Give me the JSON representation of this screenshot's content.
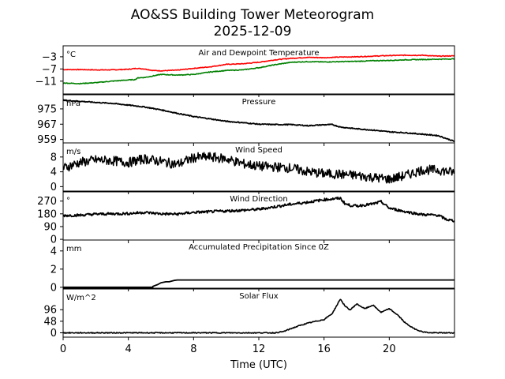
{
  "chart_data": {
    "type": "line",
    "title": "AO&SS Building Tower Meteorogram",
    "subtitle": "2025-12-09",
    "xlabel": "Time (UTC)",
    "xlim": [
      0,
      24
    ],
    "xticks": [
      0,
      4,
      8,
      12,
      16,
      20
    ],
    "panels": [
      {
        "title": "Air and Dewpoint Temperature",
        "unit": "°C",
        "ylim": [
          -15.2,
          0.6
        ],
        "yticks": [
          -3,
          -7,
          -11
        ],
        "yticklabels": [
          "−3",
          "−7",
          "−11"
        ],
        "series": [
          {
            "name": "Air Temperature",
            "color": "#ff0000",
            "x": [
              0,
              1,
              2,
              3,
              4,
              4.5,
              5,
              5.5,
              6,
              7,
              8,
              9,
              10,
              11,
              12,
              13,
              14,
              15,
              16,
              17,
              18,
              19,
              20,
              21,
              22,
              23,
              24
            ],
            "y": [
              -7.2,
              -7.2,
              -7.3,
              -7.3,
              -7.1,
              -6.8,
              -7.0,
              -7.5,
              -7.6,
              -7.4,
              -6.8,
              -6.3,
              -5.5,
              -5.3,
              -4.8,
              -4.0,
              -3.5,
              -3.2,
              -3.3,
              -3.1,
              -3.0,
              -2.8,
              -2.6,
              -2.5,
              -2.5,
              -2.8,
              -2.7
            ]
          },
          {
            "name": "Dewpoint Temperature",
            "color": "#008000",
            "x": [
              0,
              1,
              2,
              3,
              4,
              4.4,
              4.6,
              5,
              5.5,
              6,
              7,
              8,
              9,
              10,
              11,
              12,
              13,
              14,
              15,
              16,
              17,
              18,
              19,
              20,
              21,
              22,
              23,
              24
            ],
            "y": [
              -11.6,
              -11.8,
              -11.5,
              -11.0,
              -10.6,
              -10.5,
              -9.9,
              -9.8,
              -9.3,
              -8.8,
              -9.0,
              -8.8,
              -8.0,
              -7.5,
              -7.3,
              -6.6,
              -5.6,
              -4.8,
              -4.6,
              -4.7,
              -4.6,
              -4.5,
              -4.3,
              -4.2,
              -4.0,
              -3.9,
              -3.8,
              -3.7
            ]
          }
        ]
      },
      {
        "title": "Pressure",
        "unit": "hPa",
        "ylim": [
          957.2,
          982.4
        ],
        "yticks": [
          975,
          967,
          959
        ],
        "yticklabels": [
          "975",
          "967",
          "959"
        ],
        "series": [
          {
            "name": "Pressure",
            "color": "#000000",
            "x": [
              0,
              1,
              2,
              3,
              4,
              5,
              6,
              7,
              8,
              9,
              10,
              11,
              12,
              13,
              14,
              15,
              16,
              16.5,
              17,
              18,
              19,
              20,
              21,
              22,
              23,
              24
            ],
            "y": [
              979.5,
              979.0,
              978.4,
              977.9,
              977.0,
              976.0,
              974.5,
              972.7,
              971.0,
              969.8,
              968.5,
              967.8,
              967.0,
              966.8,
              966.8,
              966.2,
              966.7,
              966.8,
              965.5,
              964.6,
              963.9,
              963.0,
              962.5,
              961.8,
              961.0,
              958.0
            ]
          }
        ]
      },
      {
        "title": "Wind Speed",
        "unit": "m/s",
        "ylim": [
          -1.2,
          11.8
        ],
        "yticks": [
          8,
          4,
          0
        ],
        "yticklabels": [
          "8",
          "4",
          "0"
        ],
        "series": [
          {
            "name": "Wind Speed",
            "color": "#000000",
            "x": [
              0,
              1,
              2,
              3,
              4,
              5,
              6,
              7,
              8,
              9,
              10,
              11,
              12,
              13,
              14,
              15,
              16,
              17,
              18,
              19,
              20,
              21,
              22,
              23,
              24
            ],
            "y": [
              5.0,
              6.5,
              7.2,
              7.0,
              6.5,
              7.5,
              6.8,
              6.0,
              7.8,
              8.0,
              7.5,
              6.2,
              5.5,
              5.3,
              5.0,
              4.0,
              3.5,
              3.3,
              3.0,
              2.5,
              2.0,
              3.0,
              4.5,
              4.5,
              3.8
            ]
          }
        ]
      },
      {
        "title": "Wind Direction",
        "unit": "°",
        "ylim": [
          -5,
          335
        ],
        "yticks": [
          270,
          180,
          90,
          0
        ],
        "yticklabels": [
          "270",
          "180",
          "90",
          "0"
        ],
        "series": [
          {
            "name": "Wind Direction",
            "color": "#000000",
            "x": [
              0,
              1,
              2,
              3,
              4,
              5,
              6,
              7,
              8,
              9,
              10,
              11,
              12,
              13,
              14,
              15,
              16,
              16.5,
              17,
              17.3,
              17.6,
              18,
              19,
              19.5,
              20,
              21,
              22,
              23,
              23.5,
              24
            ],
            "y": [
              168,
              170,
              178,
              180,
              182,
              190,
              180,
              178,
              190,
              195,
              200,
              205,
              212,
              230,
              248,
              262,
              280,
              285,
              290,
              250,
              240,
              235,
              250,
              265,
              220,
              195,
              175,
              170,
              140,
              130
            ]
          }
        ]
      },
      {
        "title": "Accumulated Precipitation Since 0Z",
        "unit": "mm",
        "ylim": [
          -0.1,
          5.2
        ],
        "yticks": [
          4,
          2,
          0
        ],
        "yticklabels": [
          "4",
          "2",
          "0"
        ],
        "series": [
          {
            "name": "Accumulated Precipitation",
            "color": "#000000",
            "x": [
              0,
              5.5,
              5.5,
              5.8,
              6.0,
              6.3,
              6.5,
              6.8,
              7.0,
              24
            ],
            "y": [
              0,
              0,
              0.1,
              0.3,
              0.5,
              0.6,
              0.6,
              0.75,
              0.8,
              0.8
            ]
          }
        ]
      },
      {
        "title": "Solar Flux",
        "unit": "W/m^2",
        "ylim": [
          -18,
          182
        ],
        "yticks": [
          96,
          48,
          0
        ],
        "yticklabels": [
          "96",
          "48",
          "0"
        ],
        "series": [
          {
            "name": "Solar Flux",
            "color": "#000000",
            "x": [
              0,
              12,
              13,
              13.5,
              14,
              14.5,
              15,
              15.5,
              16,
              16.5,
              17,
              17.3,
              17.6,
              18,
              18.5,
              19,
              19.5,
              20,
              20.5,
              21,
              21.5,
              22,
              22.5,
              24
            ],
            "y": [
              0,
              0,
              0,
              5,
              18,
              30,
              40,
              48,
              55,
              80,
              140,
              110,
              95,
              120,
              100,
              115,
              85,
              100,
              75,
              40,
              18,
              5,
              0,
              0
            ]
          }
        ]
      }
    ]
  }
}
